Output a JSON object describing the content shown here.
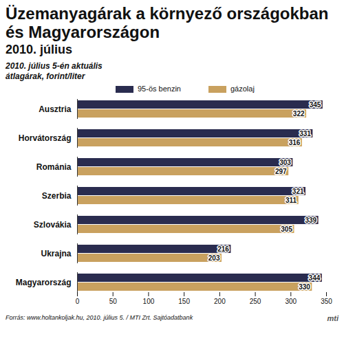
{
  "chart_data": {
    "type": "bar",
    "title": "Üzemanyagárak a környező országokban és Magyarországon",
    "subtitle": "2010. július",
    "annotation": "2010. július 5-én aktuális átlagárak, forint/liter",
    "source": "Forrás: www.holtankoljak.hu, 2010. július 5. / MTI Zrt. Sajtóadatbank",
    "logo": "mti",
    "orientation": "horizontal",
    "categories": [
      "Ausztria",
      "Horvátország",
      "Románia",
      "Szerbia",
      "Szlovákia",
      "Ukrajna",
      "Magyarország"
    ],
    "series": [
      {
        "name": "95-ös benzin",
        "color": "#2a2c4f",
        "values": [
          345,
          331,
          303,
          321,
          339,
          216,
          344
        ]
      },
      {
        "name": "gázolaj",
        "color": "#c9a15f",
        "values": [
          322,
          316,
          297,
          311,
          305,
          203,
          330
        ]
      }
    ],
    "xlim": [
      0,
      350
    ],
    "xticks": [
      0,
      50,
      100,
      150,
      200,
      250,
      300,
      350
    ],
    "data_labels": true,
    "legend": "top",
    "grid": false
  }
}
